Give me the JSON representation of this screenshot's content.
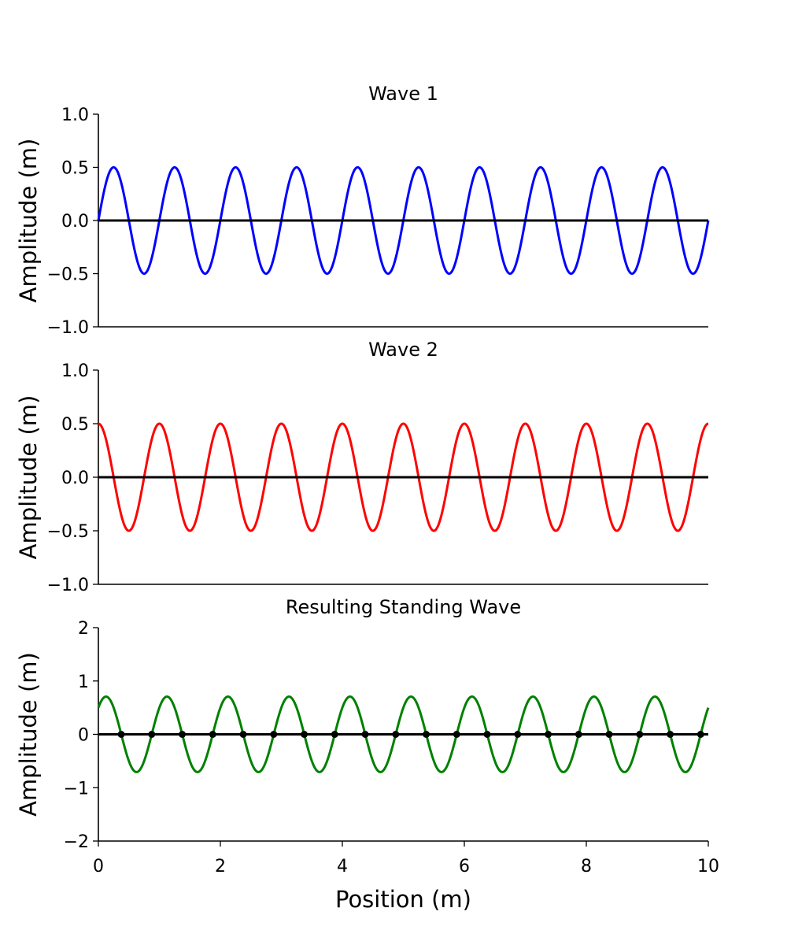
{
  "chart_data": [
    {
      "type": "line",
      "title": "Wave 1",
      "xlabel": "",
      "ylabel": "Amplitude (m)",
      "xlim": [
        0,
        10
      ],
      "ylim": [
        -1.0,
        1.0
      ],
      "yticks": [
        -1.0,
        -0.5,
        0.0,
        0.5,
        1.0
      ],
      "ytick_labels": [
        "−1.0",
        "−0.5",
        "0.0",
        "0.5",
        "1.0"
      ],
      "show_xticklabels": false,
      "grid": false,
      "series": [
        {
          "function": "0.5*sin(2*pi*x)",
          "amplitude": 0.5,
          "wavelength": 1.0,
          "phase_rad": 0.0,
          "color": "#0000ff"
        }
      ],
      "hline": {
        "y": 0,
        "color": "#000000"
      }
    },
    {
      "type": "line",
      "title": "Wave 2",
      "xlabel": "",
      "ylabel": "Amplitude (m)",
      "xlim": [
        0,
        10
      ],
      "ylim": [
        -1.0,
        1.0
      ],
      "yticks": [
        -1.0,
        -0.5,
        0.0,
        0.5,
        1.0
      ],
      "ytick_labels": [
        "−1.0",
        "−0.5",
        "0.0",
        "0.5",
        "1.0"
      ],
      "show_xticklabels": false,
      "grid": false,
      "series": [
        {
          "function": "0.5*cos(2*pi*x)",
          "amplitude": 0.5,
          "wavelength": 1.0,
          "phase_rad": 1.5708,
          "color": "#ff0000"
        }
      ],
      "hline": {
        "y": 0,
        "color": "#000000"
      }
    },
    {
      "type": "line",
      "title": "Resulting Standing Wave",
      "xlabel": "Position (m)",
      "ylabel": "Amplitude (m)",
      "xlim": [
        0,
        10
      ],
      "ylim": [
        -2,
        2
      ],
      "xticks": [
        0,
        2,
        4,
        6,
        8,
        10
      ],
      "xtick_labels": [
        "0",
        "2",
        "4",
        "6",
        "8",
        "10"
      ],
      "yticks": [
        -2,
        -1,
        0,
        1,
        2
      ],
      "ytick_labels": [
        "−2",
        "−1",
        "0",
        "1",
        "2"
      ],
      "show_xticklabels": true,
      "grid": false,
      "series": [
        {
          "function": "0.5*sin(2*pi*x)+0.5*cos(2*pi*x)",
          "amplitude": 0.7071,
          "wavelength": 1.0,
          "phase_rad": 0.7854,
          "color": "#008000"
        }
      ],
      "hline": {
        "y": 0,
        "color": "#000000"
      },
      "node_markers": {
        "color": "#000000",
        "x": [
          0.375,
          0.875,
          1.375,
          1.875,
          2.375,
          2.875,
          3.375,
          3.875,
          4.375,
          4.875,
          5.375,
          5.875,
          6.375,
          6.875,
          7.375,
          7.875,
          8.375,
          8.875,
          9.375,
          9.875
        ],
        "y": [
          0,
          0,
          0,
          0,
          0,
          0,
          0,
          0,
          0,
          0,
          0,
          0,
          0,
          0,
          0,
          0,
          0,
          0,
          0,
          0
        ]
      }
    }
  ]
}
